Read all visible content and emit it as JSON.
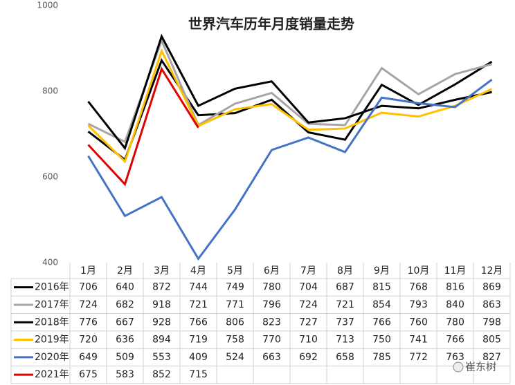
{
  "chart_data": {
    "type": "line",
    "title": "世界汽车历年月度销量走势",
    "categories": [
      "1月",
      "2月",
      "3月",
      "4月",
      "5月",
      "6月",
      "7月",
      "8月",
      "9月",
      "10月",
      "11月",
      "12月"
    ],
    "series": [
      {
        "name": "2016年",
        "color": "#000000",
        "values": [
          706,
          640,
          872,
          744,
          749,
          780,
          704,
          687,
          815,
          768,
          816,
          869
        ]
      },
      {
        "name": "2017年",
        "color": "#a5a5a5",
        "values": [
          724,
          682,
          918,
          721,
          771,
          796,
          724,
          721,
          854,
          793,
          840,
          863
        ]
      },
      {
        "name": "2018年",
        "color": "#000000",
        "values": [
          776,
          667,
          928,
          766,
          806,
          823,
          727,
          737,
          766,
          760,
          780,
          798
        ]
      },
      {
        "name": "2019年",
        "color": "#ffc000",
        "values": [
          720,
          636,
          894,
          719,
          758,
          770,
          710,
          713,
          750,
          741,
          766,
          805
        ]
      },
      {
        "name": "2020年",
        "color": "#4472c4",
        "values": [
          649,
          509,
          553,
          409,
          524,
          663,
          692,
          658,
          785,
          772,
          763,
          827
        ]
      },
      {
        "name": "2021年",
        "color": "#e00000",
        "values": [
          675,
          583,
          852,
          715,
          null,
          null,
          null,
          null,
          null,
          null,
          null,
          null
        ]
      }
    ],
    "ylim": [
      400,
      1000
    ],
    "yticks": [
      400,
      600,
      800,
      1000
    ],
    "watermark": "崔东树"
  }
}
